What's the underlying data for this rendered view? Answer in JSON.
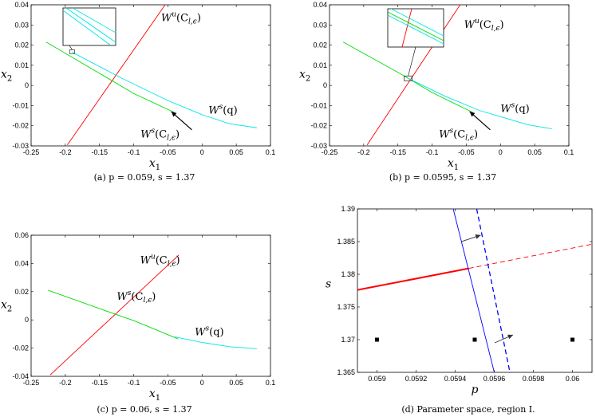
{
  "chart_data": [
    {
      "id": "a",
      "type": "line",
      "caption": "(a) p = 0.059, s = 1.37",
      "xlabel": "x1",
      "ylabel": "x2",
      "xlim": [
        -0.25,
        0.1
      ],
      "ylim": [
        -0.03,
        0.04
      ],
      "xticks": [
        -0.25,
        -0.2,
        -0.15,
        -0.1,
        -0.05,
        0,
        0.05,
        0.1
      ],
      "yticks": [
        -0.03,
        -0.02,
        -0.01,
        0,
        0.01,
        0.02,
        0.03,
        0.04
      ],
      "xtick_labels": [
        "-0.25",
        "-0.2",
        "-0.15",
        "-0.1",
        "-0.05",
        "0",
        "0.05",
        "0.1"
      ],
      "ytick_labels": [
        "-0.03",
        "-0.02",
        "-0.01",
        "0",
        "0.01",
        "0.02",
        "0.03",
        "0.04"
      ],
      "series": [
        {
          "label": "Wu(Cl,ε)",
          "color": "#ff0000",
          "x": [
            -0.197,
            -0.053
          ],
          "y": [
            -0.0295,
            0.0405
          ]
        },
        {
          "label": "Ws(Cl,ε)",
          "color": "#00dd00",
          "x": [
            -0.228,
            -0.15,
            -0.1,
            -0.04
          ],
          "y": [
            0.0215,
            0.006,
            -0.004,
            -0.0135
          ]
        },
        {
          "label": "Ws(q)",
          "color": "#00e5e5",
          "x": [
            -0.19,
            -0.12,
            -0.05,
            0,
            0.04,
            0.08
          ],
          "y": [
            0.0165,
            0.004,
            -0.0075,
            -0.0145,
            -0.019,
            -0.021
          ]
        }
      ],
      "annotations": {
        "wu": "W",
        "wu_sup": "u",
        "wu_arg": "(C",
        "wu_sub": "l,ϵ",
        "wu_end": ")",
        "wsc": "W",
        "wsc_sup": "s",
        "wsc_arg": "(C",
        "wsc_sub": "l,ϵ",
        "wsc_end": ")",
        "wsq": "W",
        "wsq_sup": "s",
        "wsq_arg": "(q)"
      },
      "inset": true
    },
    {
      "id": "b",
      "type": "line",
      "caption": "(b) p = 0.0595, s = 1.37",
      "xlabel": "x1",
      "ylabel": "x2",
      "xlim": [
        -0.25,
        0.1
      ],
      "ylim": [
        -0.03,
        0.04
      ],
      "xticks": [
        -0.25,
        -0.2,
        -0.15,
        -0.1,
        -0.05,
        0,
        0.05,
        0.1
      ],
      "yticks": [
        -0.03,
        -0.02,
        -0.01,
        0,
        0.01,
        0.02,
        0.03,
        0.04
      ],
      "xtick_labels": [
        "-0.25",
        "-0.2",
        "-0.15",
        "-0.1",
        "-0.05",
        "0",
        "0.05",
        "0.1"
      ],
      "ytick_labels": [
        "-0.03",
        "-0.02",
        "-0.01",
        "0",
        "0.01",
        "0.02",
        "0.03",
        "0.04"
      ],
      "series": [
        {
          "label": "Wu(Cl,ε)",
          "color": "#ff0000",
          "x": [
            -0.195,
            -0.058
          ],
          "y": [
            -0.0295,
            0.0405
          ]
        },
        {
          "label": "Ws(Cl,ε)",
          "color": "#00dd00",
          "x": [
            -0.23,
            -0.15,
            -0.1,
            -0.04
          ],
          "y": [
            0.0215,
            0.0065,
            -0.0035,
            -0.0135
          ]
        },
        {
          "label": "Ws(q)",
          "color": "#00e5e5",
          "x": [
            -0.135,
            -0.08,
            -0.03,
            0,
            0.04,
            0.075
          ],
          "y": [
            0.0035,
            -0.0055,
            -0.0125,
            -0.0155,
            -0.0195,
            -0.0215
          ]
        }
      ],
      "annotations": {
        "wu": "W",
        "wu_sup": "u",
        "wu_arg": "(C",
        "wu_sub": "l,ϵ",
        "wu_end": ")",
        "wsc": "W",
        "wsc_sup": "s",
        "wsc_arg": "(C",
        "wsc_sub": "l,ϵ",
        "wsc_end": ")",
        "wsq": "W",
        "wsq_sup": "s",
        "wsq_arg": "(q)"
      },
      "inset": true
    },
    {
      "id": "c",
      "type": "line",
      "caption": "(c) p = 0.06, s = 1.37",
      "xlabel": "x1",
      "ylabel": "x2",
      "xlim": [
        -0.25,
        0.1
      ],
      "ylim": [
        -0.04,
        0.06
      ],
      "xticks": [
        -0.25,
        -0.2,
        -0.15,
        -0.1,
        -0.05,
        0,
        0.05,
        0.1
      ],
      "yticks": [
        -0.04,
        -0.02,
        0,
        0.02,
        0.04,
        0.06
      ],
      "xtick_labels": [
        "-0.25",
        "-0.2",
        "-0.15",
        "-0.1",
        "-0.05",
        "0",
        "0.05",
        "0.1"
      ],
      "ytick_labels": [
        "-0.04",
        "-0.02",
        "0",
        "0.02",
        "0.04",
        "0.06"
      ],
      "series": [
        {
          "label": "Wu(Cl,ε)",
          "color": "#ff0000",
          "x": [
            -0.222,
            -0.034
          ],
          "y": [
            -0.039,
            0.046
          ]
        },
        {
          "label": "Ws(Cl,ε)",
          "color": "#00dd00",
          "x": [
            -0.225,
            -0.15,
            -0.1,
            -0.035
          ],
          "y": [
            0.021,
            0.008,
            -0.0005,
            -0.0135
          ]
        },
        {
          "label": "Ws(q)",
          "color": "#00e5e5",
          "x": [
            -0.04,
            0,
            0.04,
            0.08
          ],
          "y": [
            -0.012,
            -0.016,
            -0.019,
            -0.0205
          ]
        }
      ],
      "annotations": {
        "wu": "W",
        "wu_sup": "u",
        "wu_arg": "(C",
        "wu_sub": "l,ϵ",
        "wu_end": ")",
        "wsc": "W",
        "wsc_sup": "s",
        "wsc_arg": "(C",
        "wsc_sub": "l,ϵ",
        "wsc_end": ")",
        "wsq": "W",
        "wsq_sup": "s",
        "wsq_arg": "(q)"
      },
      "inset": false
    },
    {
      "id": "d",
      "type": "line",
      "caption": "(d) Parameter space, region I.",
      "xlabel": "p",
      "ylabel": "s",
      "xlim": [
        0.0589,
        0.0601
      ],
      "ylim": [
        1.365,
        1.39
      ],
      "xticks": [
        0.059,
        0.0592,
        0.0594,
        0.0596,
        0.0598,
        0.06
      ],
      "yticks": [
        1.365,
        1.37,
        1.375,
        1.38,
        1.385,
        1.39
      ],
      "xtick_labels": [
        "0.059",
        "0.0592",
        "0.0594",
        "0.0596",
        "0.0598",
        "0.06"
      ],
      "ytick_labels": [
        "1.365",
        "1.37",
        "1.375",
        "1.38",
        "1.385",
        "1.39"
      ],
      "series": [
        {
          "label": "red solid",
          "color": "#ff0000",
          "style": "solid",
          "x": [
            0.0589,
            0.05947
          ],
          "y": [
            1.3776,
            1.3809
          ]
        },
        {
          "label": "red dashed",
          "color": "#ff0000",
          "style": "dashed",
          "x": [
            0.05947,
            0.0601
          ],
          "y": [
            1.3809,
            1.3846
          ]
        },
        {
          "label": "blue solid",
          "color": "#0000ff",
          "style": "solid",
          "x": [
            0.05939,
            0.0596
          ],
          "y": [
            1.39,
            1.365
          ]
        },
        {
          "label": "blue dashed",
          "color": "#0000ff",
          "style": "dashed",
          "x": [
            0.05951,
            0.05968
          ],
          "y": [
            1.39,
            1.365
          ]
        }
      ],
      "points": {
        "x": [
          0.059,
          0.0595,
          0.06
        ],
        "y": [
          1.37,
          1.37,
          1.37
        ]
      }
    }
  ]
}
